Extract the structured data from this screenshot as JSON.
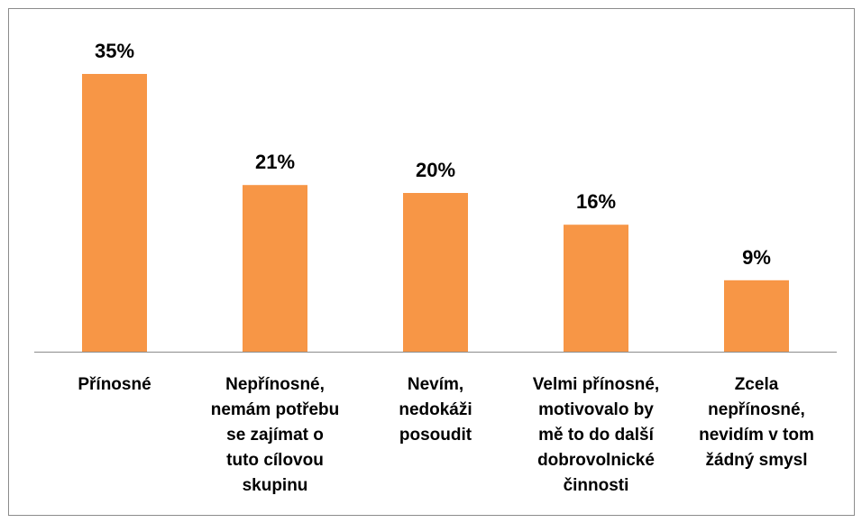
{
  "chart_data": {
    "type": "bar",
    "categories": [
      "Přínosné",
      "Nepřínosné,\nnemám potřebu\nse zajímat o\ntuto cílovou\nskupinu",
      "Nevím,\nnedokáži\nposoudit",
      "Velmi přínosné,\nmotivovalo by\nmě to do další\ndobrovolnické\nčinnosti",
      "Zcela\nnepřínosné,\nnevidím v tom\nžádný smysl"
    ],
    "values": [
      35,
      21,
      20,
      16,
      9
    ],
    "value_labels": [
      "35%",
      "21%",
      "20%",
      "16%",
      "9%"
    ],
    "color": "#f79646",
    "ylim": [
      0,
      40
    ]
  }
}
